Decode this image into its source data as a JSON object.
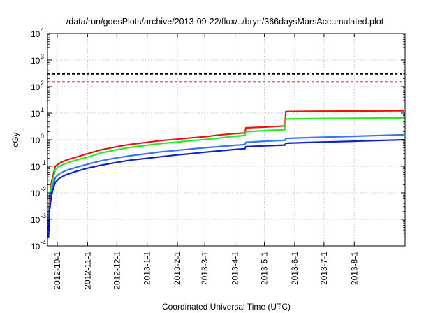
{
  "colors": {
    "background": "#ffffff",
    "axis": "#000000",
    "grid": "#b0b0b0"
  },
  "chart_data": {
    "type": "line",
    "title": "/data/run/goesPlots/archive/2013-09-22/flux/../bryn/366daysMarsAccumulated.plot",
    "xlabel": "Coordinated Universal Time (UTC)",
    "ylabel": "cGy",
    "y_scale": "log",
    "ylim": [
      0.0001,
      10000
    ],
    "xlim": [
      "2012-09-21",
      "2013-09-22"
    ],
    "x_ticks": [
      {
        "date": "2012-10-01",
        "label": "2012-10-1"
      },
      {
        "date": "2012-11-01",
        "label": "2012-11-1"
      },
      {
        "date": "2012-12-01",
        "label": "2012-12-1"
      },
      {
        "date": "2013-01-01",
        "label": "2013-1-1"
      },
      {
        "date": "2013-02-01",
        "label": "2013-2-1"
      },
      {
        "date": "2013-03-01",
        "label": "2013-3-1"
      },
      {
        "date": "2013-04-01",
        "label": "2013-4-1"
      },
      {
        "date": "2013-05-01",
        "label": "2013-5-1"
      },
      {
        "date": "2013-06-01",
        "label": "2013-6-1"
      },
      {
        "date": "2013-07-01",
        "label": "2013-7-1"
      },
      {
        "date": "2013-08-01",
        "label": "2013-8-1"
      }
    ],
    "y_ticks": [
      {
        "value": 0.0001,
        "base": "10",
        "exp": "-4"
      },
      {
        "value": 0.001,
        "base": "10",
        "exp": "-3"
      },
      {
        "value": 0.01,
        "base": "10",
        "exp": "-2"
      },
      {
        "value": 0.1,
        "base": "10",
        "exp": "-1"
      },
      {
        "value": 1,
        "base": "10",
        "exp": "0"
      },
      {
        "value": 10,
        "base": "10",
        "exp": "1"
      },
      {
        "value": 100,
        "base": "10",
        "exp": "2"
      },
      {
        "value": 1000,
        "base": "10",
        "exp": "3"
      },
      {
        "value": 10000,
        "base": "10",
        "exp": "4"
      }
    ],
    "grid": true,
    "legend": "none",
    "reference_lines": [
      {
        "color": "#000000",
        "value": 300,
        "style": "dashed"
      },
      {
        "color": "#ee0000",
        "value": 150,
        "style": "dashed"
      }
    ],
    "series": [
      {
        "color": "#ee1111",
        "points": [
          [
            "2012-09-22",
            0.0008
          ],
          [
            "2012-09-23",
            0.006
          ],
          [
            "2012-09-25",
            0.025
          ],
          [
            "2012-09-27",
            0.05
          ],
          [
            "2012-09-29",
            0.1
          ],
          [
            "2012-10-03",
            0.13
          ],
          [
            "2012-10-10",
            0.17
          ],
          [
            "2012-10-20",
            0.22
          ],
          [
            "2012-11-01",
            0.3
          ],
          [
            "2012-11-15",
            0.42
          ],
          [
            "2012-12-01",
            0.55
          ],
          [
            "2012-12-15",
            0.67
          ],
          [
            "2013-01-01",
            0.8
          ],
          [
            "2013-01-15",
            0.93
          ],
          [
            "2013-02-01",
            1.05
          ],
          [
            "2013-02-15",
            1.18
          ],
          [
            "2013-03-01",
            1.3
          ],
          [
            "2013-03-15",
            1.5
          ],
          [
            "2013-04-01",
            1.7
          ],
          [
            "2013-04-11",
            1.8
          ],
          [
            "2013-04-12",
            2.8
          ],
          [
            "2013-05-01",
            3.0
          ],
          [
            "2013-05-22",
            3.3
          ],
          [
            "2013-05-23",
            11.5
          ],
          [
            "2013-06-15",
            11.8
          ],
          [
            "2013-08-01",
            12.0
          ],
          [
            "2013-09-21",
            12.2
          ]
        ]
      },
      {
        "color": "#22ee22",
        "points": [
          [
            "2012-09-22",
            0.0006
          ],
          [
            "2012-09-23",
            0.004
          ],
          [
            "2012-09-25",
            0.018
          ],
          [
            "2012-09-27",
            0.035
          ],
          [
            "2012-09-29",
            0.075
          ],
          [
            "2012-10-03",
            0.1
          ],
          [
            "2012-10-10",
            0.13
          ],
          [
            "2012-10-20",
            0.17
          ],
          [
            "2012-11-01",
            0.22
          ],
          [
            "2012-11-15",
            0.32
          ],
          [
            "2012-12-01",
            0.42
          ],
          [
            "2012-12-15",
            0.52
          ],
          [
            "2013-01-01",
            0.62
          ],
          [
            "2013-01-15",
            0.72
          ],
          [
            "2013-02-01",
            0.82
          ],
          [
            "2013-02-15",
            0.92
          ],
          [
            "2013-03-01",
            1.02
          ],
          [
            "2013-03-15",
            1.15
          ],
          [
            "2013-04-01",
            1.35
          ],
          [
            "2013-04-11",
            1.45
          ],
          [
            "2013-04-12",
            2.0
          ],
          [
            "2013-05-01",
            2.2
          ],
          [
            "2013-05-22",
            2.4
          ],
          [
            "2013-05-23",
            6.0
          ],
          [
            "2013-06-15",
            6.2
          ],
          [
            "2013-08-01",
            6.4
          ],
          [
            "2013-09-21",
            6.6
          ]
        ]
      },
      {
        "color": "#3377ee",
        "points": [
          [
            "2012-09-22",
            0.0004
          ],
          [
            "2012-09-23",
            0.003
          ],
          [
            "2012-09-25",
            0.011
          ],
          [
            "2012-09-27",
            0.022
          ],
          [
            "2012-09-29",
            0.038
          ],
          [
            "2012-10-03",
            0.052
          ],
          [
            "2012-10-10",
            0.07
          ],
          [
            "2012-10-20",
            0.09
          ],
          [
            "2012-11-01",
            0.12
          ],
          [
            "2012-11-15",
            0.16
          ],
          [
            "2012-12-01",
            0.21
          ],
          [
            "2012-12-15",
            0.25
          ],
          [
            "2013-01-01",
            0.3
          ],
          [
            "2013-01-15",
            0.35
          ],
          [
            "2013-02-01",
            0.4
          ],
          [
            "2013-02-15",
            0.45
          ],
          [
            "2013-03-01",
            0.5
          ],
          [
            "2013-03-15",
            0.55
          ],
          [
            "2013-04-01",
            0.62
          ],
          [
            "2013-04-11",
            0.66
          ],
          [
            "2013-04-12",
            0.8
          ],
          [
            "2013-05-01",
            0.88
          ],
          [
            "2013-05-22",
            0.95
          ],
          [
            "2013-05-23",
            1.12
          ],
          [
            "2013-06-15",
            1.2
          ],
          [
            "2013-08-01",
            1.35
          ],
          [
            "2013-09-21",
            1.55
          ]
        ]
      },
      {
        "color": "#1122cc",
        "points": [
          [
            "2012-09-22",
            0.0002
          ],
          [
            "2012-09-23",
            0.002
          ],
          [
            "2012-09-25",
            0.008
          ],
          [
            "2012-09-27",
            0.015
          ],
          [
            "2012-09-29",
            0.025
          ],
          [
            "2012-10-03",
            0.035
          ],
          [
            "2012-10-10",
            0.048
          ],
          [
            "2012-10-20",
            0.064
          ],
          [
            "2012-11-01",
            0.085
          ],
          [
            "2012-11-15",
            0.11
          ],
          [
            "2012-12-01",
            0.14
          ],
          [
            "2012-12-15",
            0.17
          ],
          [
            "2013-01-01",
            0.2
          ],
          [
            "2013-01-15",
            0.23
          ],
          [
            "2013-02-01",
            0.27
          ],
          [
            "2013-02-15",
            0.3
          ],
          [
            "2013-03-01",
            0.34
          ],
          [
            "2013-03-15",
            0.38
          ],
          [
            "2013-04-01",
            0.43
          ],
          [
            "2013-04-11",
            0.46
          ],
          [
            "2013-04-12",
            0.55
          ],
          [
            "2013-05-01",
            0.59
          ],
          [
            "2013-05-22",
            0.63
          ],
          [
            "2013-05-23",
            0.74
          ],
          [
            "2013-06-15",
            0.79
          ],
          [
            "2013-08-01",
            0.88
          ],
          [
            "2013-09-21",
            1.0
          ]
        ]
      }
    ]
  }
}
